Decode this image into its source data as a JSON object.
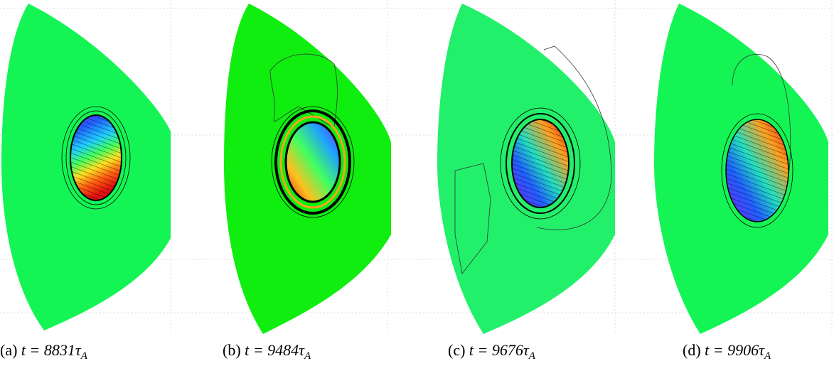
{
  "panels": [
    {
      "label": "(a)",
      "math": "t = 8831τ",
      "sub": "A"
    },
    {
      "label": "(b)",
      "math": "t = 9484τ",
      "sub": "A"
    },
    {
      "label": "(c)",
      "math": "t = 9676τ",
      "sub": "A"
    },
    {
      "label": "(d)",
      "math": "t = 9906τ",
      "sub": "A"
    }
  ]
}
